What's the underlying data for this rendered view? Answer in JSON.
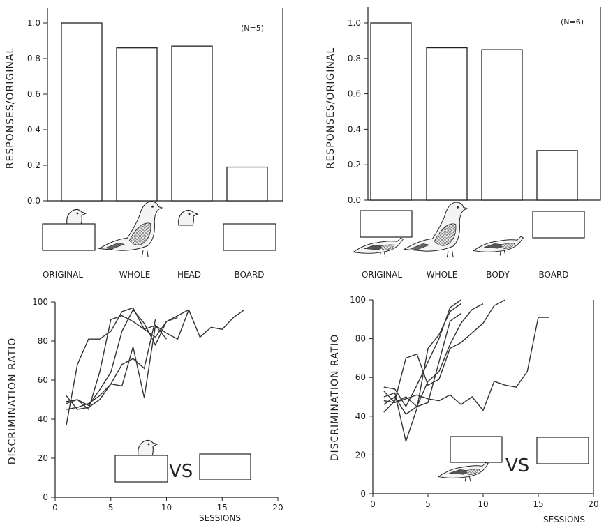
{
  "chart_data": [
    {
      "type": "bar",
      "annotation": "(N=5)",
      "ylabel": "RESPONSES/ORIGINAL",
      "ylim": [
        0,
        1.08
      ],
      "yticks": [
        "0.0",
        "0.2",
        "0.4",
        "0.6",
        "0.8",
        "1.0"
      ],
      "categories": [
        "ORIGINAL",
        "WHOLE",
        "HEAD",
        "BOARD"
      ],
      "values": [
        1.0,
        0.86,
        0.87,
        0.19
      ],
      "stimuli": [
        "head-over-board",
        "whole-pigeon",
        "pigeon-head",
        "board"
      ]
    },
    {
      "type": "bar",
      "annotation": "(N=6)",
      "ylabel": "RESPONSES/ORIGINAL",
      "ylim": [
        0,
        1.08
      ],
      "yticks": [
        "0.0",
        "0.2",
        "0.4",
        "0.6",
        "0.8",
        "1.0"
      ],
      "categories": [
        "ORIGINAL",
        "WHOLE",
        "BODY",
        "BOARD"
      ],
      "values": [
        1.0,
        0.86,
        0.85,
        0.28
      ],
      "stimuli": [
        "body-below-board",
        "whole-pigeon",
        "pigeon-body",
        "board"
      ]
    },
    {
      "type": "line",
      "ylabel": "DISCRIMINATION RATIO",
      "xlabel": "SESSIONS",
      "xlim": [
        0,
        20
      ],
      "ylim": [
        0,
        100
      ],
      "xticks": [
        "0",
        "5",
        "10",
        "15",
        "20"
      ],
      "yticks": [
        "0",
        "20",
        "40",
        "60",
        "80",
        "100"
      ],
      "vs_label": "VS",
      "series": [
        {
          "x": [
            1,
            2,
            3,
            4,
            5,
            6,
            7,
            8,
            9,
            10,
            11,
            12
          ],
          "y": [
            37,
            68,
            81,
            81,
            85,
            95,
            97,
            86,
            88,
            84,
            81,
            96
          ]
        },
        {
          "x": [
            1,
            2,
            3,
            4,
            5,
            6,
            7,
            8,
            9,
            10,
            11,
            12,
            13,
            14,
            15,
            16,
            17
          ],
          "y": [
            48,
            50,
            45,
            64,
            91,
            93,
            90,
            86,
            82,
            90,
            93,
            96,
            82,
            87,
            86,
            92,
            96
          ]
        },
        {
          "x": [
            1,
            2,
            3,
            4,
            5,
            6,
            7,
            8,
            9,
            10
          ],
          "y": [
            52,
            45,
            46,
            50,
            58,
            57,
            77,
            51,
            88,
            81
          ]
        },
        {
          "x": [
            1,
            2,
            3,
            4,
            5,
            6,
            7,
            8,
            9
          ],
          "y": [
            45,
            46,
            48,
            52,
            58,
            68,
            71,
            66,
            91
          ]
        },
        {
          "x": [
            1,
            2,
            3,
            4,
            5,
            6,
            7,
            8,
            9,
            10,
            11
          ],
          "y": [
            49,
            50,
            47,
            55,
            64,
            85,
            96,
            89,
            78,
            90,
            92
          ]
        }
      ]
    },
    {
      "type": "line",
      "ylabel": "DISCRIMINATION RATIO",
      "xlabel": "SESSIONS",
      "xlim": [
        0,
        20
      ],
      "ylim": [
        0,
        100
      ],
      "xticks": [
        "0",
        "5",
        "10",
        "15",
        "20"
      ],
      "yticks": [
        "0",
        "20",
        "40",
        "60",
        "80",
        "100"
      ],
      "vs_label": "VS",
      "series": [
        {
          "x": [
            1,
            2,
            3,
            4,
            5,
            6,
            7,
            8
          ],
          "y": [
            55,
            54,
            45,
            56,
            68,
            80,
            96,
            100
          ]
        },
        {
          "x": [
            1,
            2,
            3,
            4,
            5,
            6,
            7,
            8
          ],
          "y": [
            50,
            52,
            27,
            44,
            75,
            82,
            94,
            98
          ]
        },
        {
          "x": [
            1,
            2,
            3,
            4,
            5,
            6,
            7,
            8,
            9,
            10
          ],
          "y": [
            46,
            50,
            41,
            45,
            58,
            63,
            77,
            88,
            95,
            98
          ]
        },
        {
          "x": [
            1,
            2,
            3,
            4,
            5,
            6,
            7,
            8,
            9,
            10,
            11,
            12
          ],
          "y": [
            42,
            48,
            70,
            72,
            56,
            59,
            75,
            78,
            83,
            88,
            97,
            100
          ]
        },
        {
          "x": [
            1,
            2,
            3,
            4,
            5,
            6,
            7,
            8,
            9,
            10,
            11,
            12,
            13,
            14,
            15,
            16
          ],
          "y": [
            48,
            47,
            49,
            51,
            49,
            48,
            51,
            46,
            50,
            43,
            58,
            56,
            55,
            63,
            91,
            91
          ]
        },
        {
          "x": [
            1,
            2,
            3,
            4,
            5,
            6,
            7,
            8
          ],
          "y": [
            53,
            47,
            50,
            45,
            47,
            68,
            89,
            93
          ]
        }
      ]
    }
  ]
}
